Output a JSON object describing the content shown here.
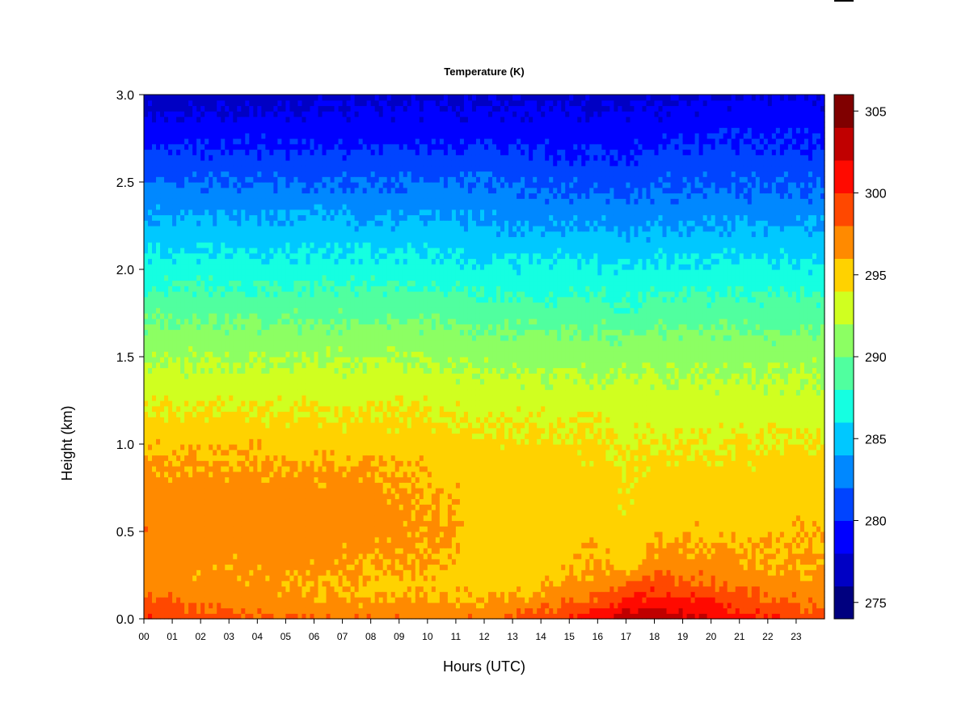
{
  "chart_data": {
    "type": "heatmap",
    "title": "Temperature (K)",
    "xlabel": "Hours (UTC)",
    "ylabel": "Height (km)",
    "xlim": [
      0,
      24
    ],
    "ylim": [
      0,
      3.0
    ],
    "x_ticks": [
      "00",
      "01",
      "02",
      "03",
      "04",
      "05",
      "06",
      "07",
      "08",
      "09",
      "10",
      "11",
      "12",
      "13",
      "14",
      "15",
      "16",
      "17",
      "18",
      "19",
      "20",
      "21",
      "22",
      "23"
    ],
    "y_ticks": [
      "0.0",
      "0.5",
      "1.0",
      "1.5",
      "2.0",
      "2.5",
      "3.0"
    ],
    "colorbar": {
      "min": 274,
      "max": 306,
      "step": 2,
      "ticks": [
        "275",
        "280",
        "285",
        "290",
        "295",
        "300",
        "305"
      ],
      "colors": [
        "#00007f",
        "#0000c4",
        "#0000ff",
        "#0044ff",
        "#0088ff",
        "#00c8ff",
        "#15ffe1",
        "#50ff9f",
        "#8cff63",
        "#d0ff20",
        "#ffd200",
        "#ff8a00",
        "#ff4800",
        "#ff0a00",
        "#c00000",
        "#800000"
      ]
    },
    "profile_heights_km": [
      0.0,
      0.05,
      0.1,
      0.2,
      0.3,
      0.5,
      0.7,
      0.9,
      1.0,
      1.2,
      1.4,
      1.6,
      1.8,
      2.0,
      2.2,
      2.4,
      2.6,
      2.8,
      3.0
    ],
    "profile_hours": [
      0,
      2,
      4,
      6,
      8,
      10,
      12,
      14,
      16,
      17,
      18,
      20,
      22,
      24
    ],
    "temperature_K": [
      [
        300.0,
        299.0,
        298.5,
        297.0,
        297.0,
        297.5,
        297.0,
        296.0,
        295.5,
        294.0,
        292.5,
        291.0,
        289.0,
        287.0,
        285.0,
        283.0,
        281.0,
        279.0,
        277.0
      ],
      [
        299.0,
        298.0,
        297.5,
        296.5,
        296.5,
        297.0,
        297.0,
        296.0,
        295.5,
        294.0,
        292.5,
        291.0,
        289.0,
        287.0,
        285.0,
        283.0,
        281.0,
        279.0,
        277.0
      ],
      [
        298.5,
        297.5,
        297.0,
        296.5,
        296.5,
        297.0,
        297.0,
        296.0,
        295.5,
        294.0,
        292.5,
        291.0,
        289.0,
        287.0,
        285.0,
        283.0,
        281.0,
        279.0,
        277.0
      ],
      [
        298.0,
        297.0,
        296.5,
        296.0,
        296.5,
        297.0,
        297.0,
        296.0,
        295.0,
        294.0,
        292.5,
        291.0,
        289.0,
        287.0,
        285.0,
        283.0,
        281.0,
        279.0,
        277.5
      ],
      [
        298.0,
        297.0,
        296.0,
        295.5,
        296.0,
        296.8,
        296.8,
        296.0,
        295.0,
        294.0,
        292.5,
        291.0,
        289.0,
        287.0,
        285.0,
        283.0,
        281.0,
        279.0,
        277.5
      ],
      [
        298.0,
        297.0,
        296.0,
        295.5,
        296.0,
        296.5,
        296.0,
        295.5,
        295.0,
        294.0,
        292.5,
        291.0,
        289.0,
        287.0,
        285.0,
        283.0,
        281.0,
        279.0,
        277.5
      ],
      [
        298.0,
        297.0,
        296.0,
        295.0,
        295.0,
        295.0,
        295.0,
        294.8,
        294.5,
        293.5,
        292.0,
        290.5,
        288.5,
        286.5,
        284.5,
        283.0,
        281.0,
        279.0,
        277.5
      ],
      [
        299.0,
        298.0,
        297.0,
        295.5,
        295.0,
        295.0,
        295.0,
        294.8,
        294.5,
        293.5,
        292.0,
        290.5,
        288.5,
        286.5,
        284.5,
        282.5,
        280.5,
        279.0,
        277.5
      ],
      [
        301.0,
        300.0,
        298.5,
        297.0,
        296.0,
        295.5,
        295.0,
        294.5,
        294.3,
        293.5,
        292.0,
        290.5,
        288.5,
        286.5,
        284.5,
        282.5,
        280.5,
        279.0,
        277.5
      ],
      [
        303.5,
        302.0,
        300.5,
        298.0,
        295.0,
        294.5,
        294.5,
        294.0,
        293.8,
        293.0,
        292.0,
        290.0,
        288.0,
        286.0,
        284.0,
        282.0,
        280.5,
        279.0,
        277.5
      ],
      [
        304.0,
        302.5,
        301.0,
        299.0,
        297.0,
        295.5,
        295.0,
        294.5,
        294.0,
        293.0,
        292.0,
        290.5,
        288.5,
        286.5,
        284.5,
        282.5,
        281.0,
        279.0,
        277.5
      ],
      [
        302.0,
        301.0,
        300.0,
        298.0,
        297.0,
        295.5,
        295.0,
        294.5,
        294.0,
        293.0,
        292.0,
        290.5,
        288.5,
        286.5,
        284.5,
        282.5,
        281.0,
        279.5,
        278.0
      ],
      [
        300.0,
        299.0,
        298.0,
        297.0,
        296.0,
        295.5,
        295.0,
        294.5,
        294.0,
        293.0,
        292.0,
        290.5,
        288.5,
        286.5,
        284.5,
        282.5,
        281.0,
        279.5,
        278.0
      ],
      [
        299.0,
        298.0,
        297.5,
        296.5,
        296.0,
        295.8,
        295.3,
        294.8,
        294.2,
        293.0,
        292.0,
        290.5,
        288.5,
        286.5,
        284.5,
        282.5,
        281.0,
        279.5,
        278.0
      ]
    ]
  }
}
